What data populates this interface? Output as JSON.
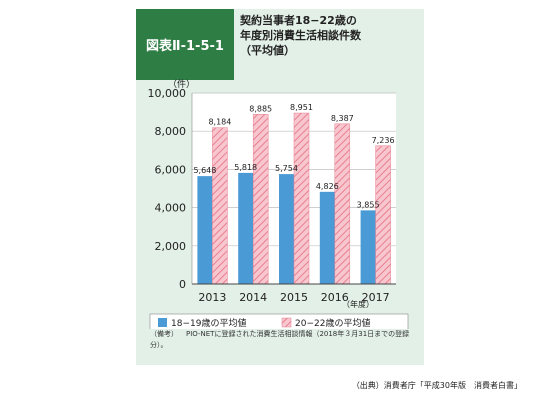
{
  "figure": {
    "label": "図表Ⅱ-1-5-1",
    "title_lines": [
      "契約当事者18−22歳の",
      "年度別消費生活相談件数",
      "（平均値）"
    ]
  },
  "chart_data": {
    "type": "bar",
    "categories": [
      "2013",
      "2014",
      "2015",
      "2016",
      "2017"
    ],
    "x_unit_label": "（年度）",
    "y_unit_label": "（件）",
    "ylim": [
      0,
      10000
    ],
    "y_ticks": [
      0,
      2000,
      4000,
      6000,
      8000,
      10000
    ],
    "y_tick_labels": [
      "0",
      "2,000",
      "4,000",
      "6,000",
      "8,000",
      "10,000"
    ],
    "grid": true,
    "legend_position": "bottom",
    "series": [
      {
        "name": "18−19歳の平均値",
        "color": "#4a9ad6",
        "pattern": "solid",
        "values": [
          5648,
          5818,
          5754,
          4826,
          3855
        ],
        "value_labels": [
          "5,648",
          "5,818",
          "5,754",
          "4,826",
          "3,855"
        ]
      },
      {
        "name": "20−22歳の平均値",
        "color": "#f3a7b3",
        "pattern": "hatched",
        "values": [
          8184,
          8885,
          8951,
          8387,
          7236
        ],
        "value_labels": [
          "8,184",
          "8,885",
          "8,951",
          "8,387",
          "7,236"
        ]
      }
    ]
  },
  "note": {
    "tag": "（備考）",
    "text": "PIO-NETに登録された消費生活相談情報（2018年３月31日までの登録分）。"
  },
  "source": "（出典）消費者庁「平成30年版　消費者白書」"
}
